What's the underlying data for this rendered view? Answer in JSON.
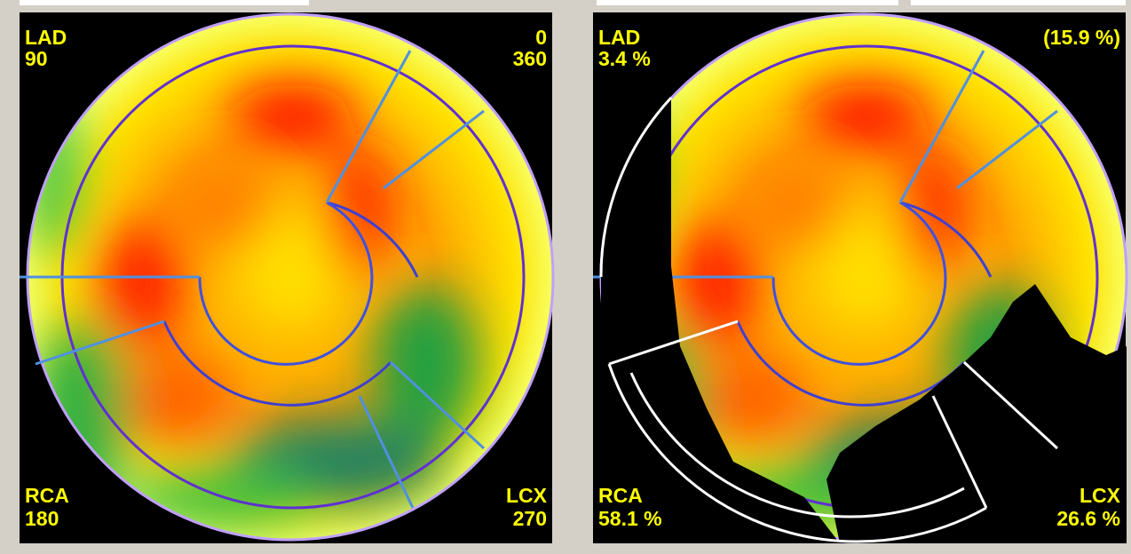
{
  "left_panel": {
    "top_left": {
      "label": "LAD",
      "value": "90"
    },
    "top_right": {
      "label": "0",
      "value": "360"
    },
    "bottom_left": {
      "label": "RCA",
      "value": "180"
    },
    "bottom_right": {
      "label": "LCX",
      "value": "270"
    }
  },
  "right_panel": {
    "top_left": {
      "label": "LAD",
      "value": "3.4 %"
    },
    "top_right": {
      "value": "(15.9 %)"
    },
    "bottom_left": {
      "label": "RCA",
      "value": "58.1 %"
    },
    "bottom_right": {
      "label": "LCX",
      "value": "26.6 %"
    }
  }
}
